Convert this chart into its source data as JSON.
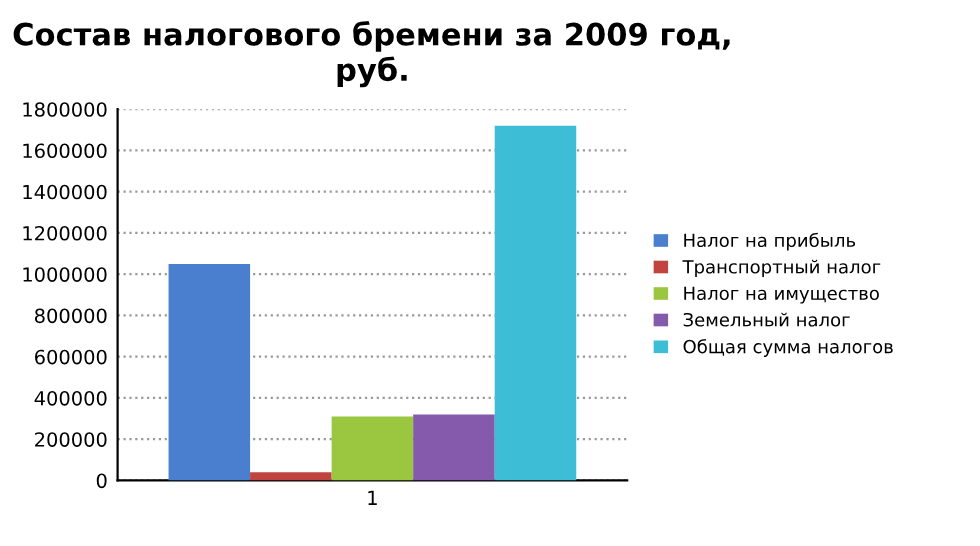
{
  "chart_data": {
    "type": "bar",
    "title": "Состав налогового бремени за 2009 год, руб.",
    "categories": [
      "1"
    ],
    "series": [
      {
        "name": "Налог на прибыль",
        "color": "#4a7fd0",
        "values": [
          1050000
        ]
      },
      {
        "name": "Транспортный налог",
        "color": "#c0443f",
        "values": [
          40000
        ]
      },
      {
        "name": "Налог на имущество",
        "color": "#9bc63f",
        "values": [
          310000
        ]
      },
      {
        "name": "Земельный налог",
        "color": "#8559ac",
        "values": [
          320000
        ]
      },
      {
        "name": "Общая сумма налогов",
        "color": "#3dbdd6",
        "values": [
          1720000
        ]
      }
    ],
    "ylim": [
      0,
      1800000
    ],
    "yticks": [
      0,
      200000,
      400000,
      600000,
      800000,
      1000000,
      1200000,
      1400000,
      1600000,
      1800000
    ],
    "grid": "y",
    "legend": "right"
  }
}
